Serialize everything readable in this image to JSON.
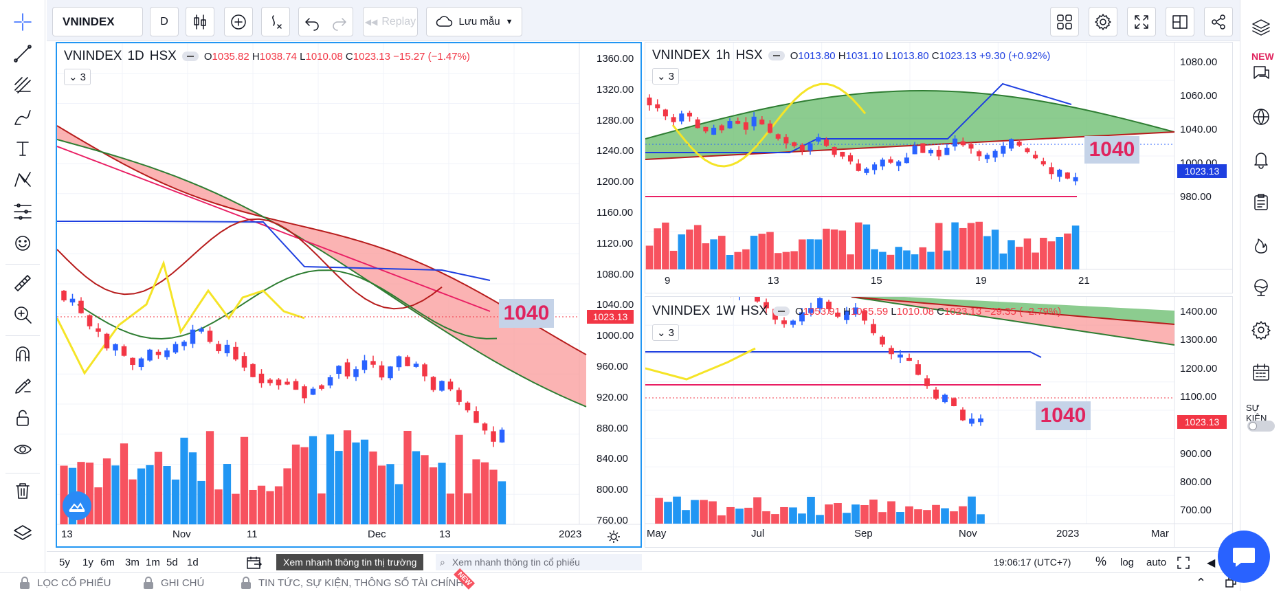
{
  "toolbar": {
    "symbol": "VNINDEX",
    "interval": "D",
    "replay": "Replay",
    "save": "Lưu mẫu"
  },
  "panels": {
    "p1": {
      "symbol": "VNINDEX",
      "tf": "1D",
      "exch": "HSX",
      "o_l": "O",
      "o": "1035.82",
      "h_l": "H",
      "h": "1038.74",
      "l_l": "L",
      "l": "1010.08",
      "c_l": "C",
      "c": "1023.13",
      "chg": "−15.27 (−1.47%)",
      "count": "3",
      "last": "1023.13",
      "big": "1040",
      "prices": [
        "1360.00",
        "1320.00",
        "1280.00",
        "1240.00",
        "1200.00",
        "1160.00",
        "1120.00",
        "1080.00",
        "1040.00",
        "1000.00",
        "960.00",
        "920.00",
        "880.00",
        "840.00",
        "800.00",
        "760.00"
      ],
      "times": [
        "13",
        "Nov",
        "11",
        "Dec",
        "13",
        "2023"
      ]
    },
    "p2": {
      "symbol": "VNINDEX",
      "tf": "1h",
      "exch": "HSX",
      "o_l": "O",
      "o": "1013.80",
      "h_l": "H",
      "h": "1031.10",
      "l_l": "L",
      "l": "1013.80",
      "c_l": "C",
      "c": "1023.13",
      "chg": "+9.30 (+0.92%)",
      "count": "3",
      "last": "1023.13",
      "big": "1040",
      "prices": [
        "1080.00",
        "1060.00",
        "1040.00",
        "1000.00",
        "980.00"
      ],
      "times": [
        "9",
        "13",
        "15",
        "19",
        "21"
      ]
    },
    "p3": {
      "symbol": "VNINDEX",
      "tf": "1W",
      "exch": "HSX",
      "o_l": "O",
      "o": "1053.91",
      "h_l": "H",
      "h": "1065.59",
      "l_l": "L",
      "l": "1010.08",
      "c_l": "C",
      "c": "1023.13",
      "chg": "−29.35 (−2.79%)",
      "count": "3",
      "last": "1023.13",
      "big": "1040",
      "prices": [
        "1400.00",
        "1300.00",
        "1200.00",
        "1100.00",
        "1000.00",
        "900.00",
        "800.00",
        "700.00"
      ],
      "times": [
        "May",
        "Jul",
        "Sep",
        "Nov",
        "2023",
        "Mar"
      ]
    }
  },
  "bottom": {
    "ranges": [
      "5y",
      "1y",
      "6m",
      "3m",
      "1m",
      "5d",
      "1d"
    ],
    "market_btn": "Xem nhanh thông tin thị trường",
    "stock_search": "Xem nhanh thông tin cổ phiếu",
    "clock": "19:06:17 (UTC+7)",
    "pct": "%",
    "log": "log",
    "auto": "auto"
  },
  "footer": {
    "tab1": "LỌC CỔ PHIẾU",
    "tab2": "GHI CHÚ",
    "tab3": "TIN TỨC, SỰ KIỆN, THÔNG SỐ TÀI CHÍNH",
    "new_badge": "NEW"
  },
  "right": {
    "new_label": "NEW",
    "event_label": "SỰ KIỆN"
  },
  "colors": {
    "up": "#2962ff",
    "down": "#f23645",
    "vol_up": "#2196f3",
    "vol_down": "#f7525f",
    "kumo_red": "#f99a9a",
    "kumo_green": "#66bb6a",
    "tenkan": "#e91e63",
    "kijun": "#1e3fe0",
    "chikou": "#f5e427",
    "senkou_a": "#2e7d32",
    "senkou_b": "#b71c1c"
  }
}
